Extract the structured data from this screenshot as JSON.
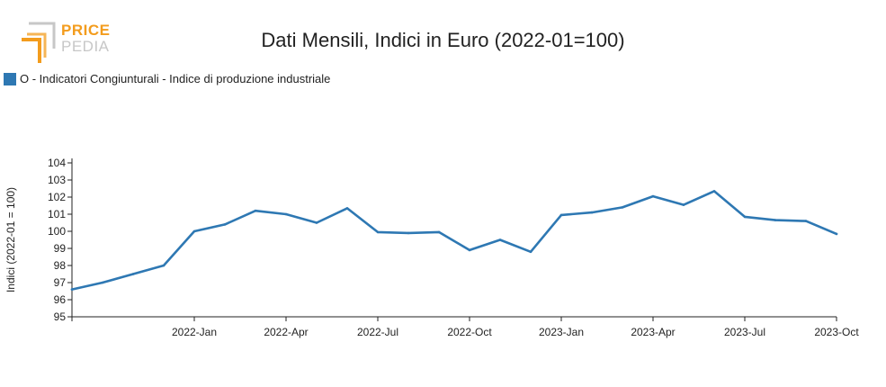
{
  "logo": {
    "word1": "PRICE",
    "word2": "PEDIA"
  },
  "colors": {
    "series": "#2e78b3",
    "logo_orange": "#f39c1d",
    "logo_gray": "#c7c7c7"
  },
  "chart_data": {
    "type": "line",
    "title": "Dati Mensili, Indici in Euro (2022-01=100)",
    "ylabel": "Indici (2022-01 = 100)",
    "xlabel": "",
    "legend_position": "top-left",
    "grid": false,
    "ylim": [
      95,
      104
    ],
    "y_ticks": [
      95,
      96,
      97,
      98,
      99,
      100,
      101,
      102,
      103,
      104
    ],
    "x_ticks": [
      "2022-Jan",
      "2022-Apr",
      "2022-Jul",
      "2022-Oct",
      "2023-Jan",
      "2023-Apr",
      "2023-Jul",
      "2023-Oct"
    ],
    "x": [
      "2021-09",
      "2021-10",
      "2021-11",
      "2021-12",
      "2022-01",
      "2022-02",
      "2022-03",
      "2022-04",
      "2022-05",
      "2022-06",
      "2022-07",
      "2022-08",
      "2022-09",
      "2022-10",
      "2022-11",
      "2022-12",
      "2023-01",
      "2023-02",
      "2023-03",
      "2023-04",
      "2023-05",
      "2023-06",
      "2023-07",
      "2023-08",
      "2023-09",
      "2023-10"
    ],
    "series": [
      {
        "name": "O - Indicatori Congiunturali - Indice di produzione industriale",
        "values": [
          96.6,
          97.0,
          97.5,
          98.0,
          100.0,
          100.4,
          101.2,
          101.0,
          100.5,
          101.35,
          99.95,
          99.9,
          99.95,
          98.9,
          99.5,
          98.8,
          100.95,
          101.1,
          101.4,
          102.05,
          101.55,
          102.35,
          100.85,
          100.65,
          100.6,
          99.85
        ]
      }
    ]
  }
}
